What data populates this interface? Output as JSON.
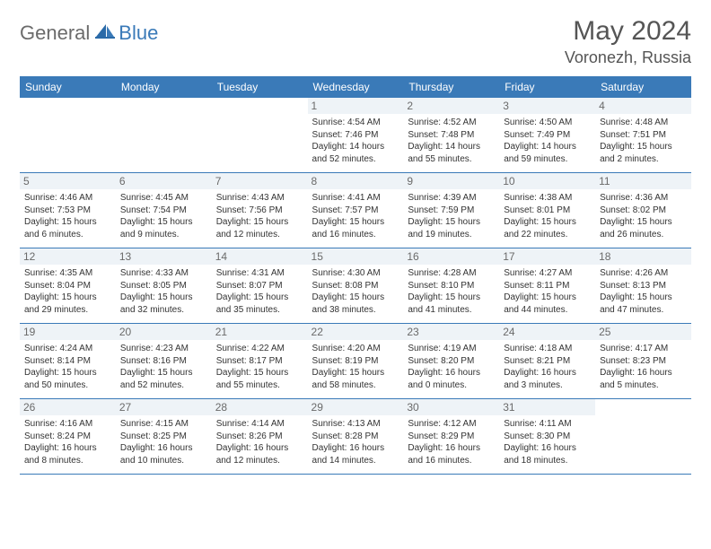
{
  "logo": {
    "part1": "General",
    "part2": "Blue"
  },
  "title": "May 2024",
  "location": "Voronezh, Russia",
  "colors": {
    "header_bg": "#3a7ab8",
    "header_fg": "#ffffff",
    "daynum_bg": "#eef3f7",
    "daynum_fg": "#6a6a6a",
    "border": "#3a7ab8",
    "text": "#333333",
    "logo_gray": "#6b6b6b",
    "logo_blue": "#3a7ab8"
  },
  "weekdays": [
    "Sunday",
    "Monday",
    "Tuesday",
    "Wednesday",
    "Thursday",
    "Friday",
    "Saturday"
  ],
  "weeks": [
    [
      null,
      null,
      null,
      {
        "d": "1",
        "sr": "4:54 AM",
        "ss": "7:46 PM",
        "dl": "14 hours and 52 minutes."
      },
      {
        "d": "2",
        "sr": "4:52 AM",
        "ss": "7:48 PM",
        "dl": "14 hours and 55 minutes."
      },
      {
        "d": "3",
        "sr": "4:50 AM",
        "ss": "7:49 PM",
        "dl": "14 hours and 59 minutes."
      },
      {
        "d": "4",
        "sr": "4:48 AM",
        "ss": "7:51 PM",
        "dl": "15 hours and 2 minutes."
      }
    ],
    [
      {
        "d": "5",
        "sr": "4:46 AM",
        "ss": "7:53 PM",
        "dl": "15 hours and 6 minutes."
      },
      {
        "d": "6",
        "sr": "4:45 AM",
        "ss": "7:54 PM",
        "dl": "15 hours and 9 minutes."
      },
      {
        "d": "7",
        "sr": "4:43 AM",
        "ss": "7:56 PM",
        "dl": "15 hours and 12 minutes."
      },
      {
        "d": "8",
        "sr": "4:41 AM",
        "ss": "7:57 PM",
        "dl": "15 hours and 16 minutes."
      },
      {
        "d": "9",
        "sr": "4:39 AM",
        "ss": "7:59 PM",
        "dl": "15 hours and 19 minutes."
      },
      {
        "d": "10",
        "sr": "4:38 AM",
        "ss": "8:01 PM",
        "dl": "15 hours and 22 minutes."
      },
      {
        "d": "11",
        "sr": "4:36 AM",
        "ss": "8:02 PM",
        "dl": "15 hours and 26 minutes."
      }
    ],
    [
      {
        "d": "12",
        "sr": "4:35 AM",
        "ss": "8:04 PM",
        "dl": "15 hours and 29 minutes."
      },
      {
        "d": "13",
        "sr": "4:33 AM",
        "ss": "8:05 PM",
        "dl": "15 hours and 32 minutes."
      },
      {
        "d": "14",
        "sr": "4:31 AM",
        "ss": "8:07 PM",
        "dl": "15 hours and 35 minutes."
      },
      {
        "d": "15",
        "sr": "4:30 AM",
        "ss": "8:08 PM",
        "dl": "15 hours and 38 minutes."
      },
      {
        "d": "16",
        "sr": "4:28 AM",
        "ss": "8:10 PM",
        "dl": "15 hours and 41 minutes."
      },
      {
        "d": "17",
        "sr": "4:27 AM",
        "ss": "8:11 PM",
        "dl": "15 hours and 44 minutes."
      },
      {
        "d": "18",
        "sr": "4:26 AM",
        "ss": "8:13 PM",
        "dl": "15 hours and 47 minutes."
      }
    ],
    [
      {
        "d": "19",
        "sr": "4:24 AM",
        "ss": "8:14 PM",
        "dl": "15 hours and 50 minutes."
      },
      {
        "d": "20",
        "sr": "4:23 AM",
        "ss": "8:16 PM",
        "dl": "15 hours and 52 minutes."
      },
      {
        "d": "21",
        "sr": "4:22 AM",
        "ss": "8:17 PM",
        "dl": "15 hours and 55 minutes."
      },
      {
        "d": "22",
        "sr": "4:20 AM",
        "ss": "8:19 PM",
        "dl": "15 hours and 58 minutes."
      },
      {
        "d": "23",
        "sr": "4:19 AM",
        "ss": "8:20 PM",
        "dl": "16 hours and 0 minutes."
      },
      {
        "d": "24",
        "sr": "4:18 AM",
        "ss": "8:21 PM",
        "dl": "16 hours and 3 minutes."
      },
      {
        "d": "25",
        "sr": "4:17 AM",
        "ss": "8:23 PM",
        "dl": "16 hours and 5 minutes."
      }
    ],
    [
      {
        "d": "26",
        "sr": "4:16 AM",
        "ss": "8:24 PM",
        "dl": "16 hours and 8 minutes."
      },
      {
        "d": "27",
        "sr": "4:15 AM",
        "ss": "8:25 PM",
        "dl": "16 hours and 10 minutes."
      },
      {
        "d": "28",
        "sr": "4:14 AM",
        "ss": "8:26 PM",
        "dl": "16 hours and 12 minutes."
      },
      {
        "d": "29",
        "sr": "4:13 AM",
        "ss": "8:28 PM",
        "dl": "16 hours and 14 minutes."
      },
      {
        "d": "30",
        "sr": "4:12 AM",
        "ss": "8:29 PM",
        "dl": "16 hours and 16 minutes."
      },
      {
        "d": "31",
        "sr": "4:11 AM",
        "ss": "8:30 PM",
        "dl": "16 hours and 18 minutes."
      },
      null
    ]
  ],
  "labels": {
    "sunrise": "Sunrise:",
    "sunset": "Sunset:",
    "daylight": "Daylight:"
  }
}
